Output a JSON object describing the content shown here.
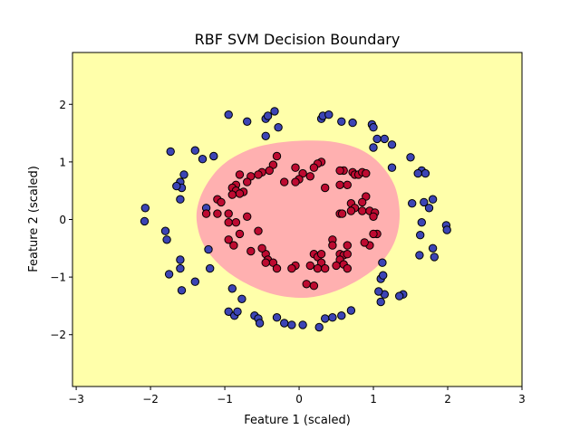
{
  "chart_data": {
    "type": "scatter",
    "title": "RBF SVM Decision Boundary",
    "xlabel": "Feature 1 (scaled)",
    "ylabel": "Feature 2 (scaled)",
    "xlim": [
      -3.05,
      3.0
    ],
    "ylim": [
      -2.9,
      2.9
    ],
    "xticks": [
      -3,
      -2,
      -1,
      0,
      1,
      2,
      3
    ],
    "yticks": [
      -2,
      -1,
      0,
      1,
      2
    ],
    "xtick_labels": [
      "−3",
      "−2",
      "−1",
      "0",
      "1",
      "2",
      "3"
    ],
    "ytick_labels": [
      "−2",
      "−1",
      "0",
      "1",
      "2"
    ],
    "grid": false,
    "legend": "none",
    "colors": {
      "background_region": "#ffffaa",
      "boundary_region": "#ffb0b0",
      "class_outer": "#3c44b5",
      "class_inner": "#bd0a30",
      "marker_edge": "#000000"
    },
    "decision_region": [
      [
        -1.38,
        0.0
      ],
      [
        -1.34,
        0.35
      ],
      [
        -1.2,
        0.7
      ],
      [
        -1.0,
        0.98
      ],
      [
        -0.7,
        1.2
      ],
      [
        -0.35,
        1.32
      ],
      [
        0.1,
        1.37
      ],
      [
        0.5,
        1.34
      ],
      [
        0.85,
        1.2
      ],
      [
        1.1,
        0.95
      ],
      [
        1.28,
        0.6
      ],
      [
        1.35,
        0.2
      ],
      [
        1.33,
        -0.2
      ],
      [
        1.22,
        -0.55
      ],
      [
        1.02,
        -0.85
      ],
      [
        0.7,
        -1.12
      ],
      [
        0.35,
        -1.3
      ],
      [
        0.0,
        -1.36
      ],
      [
        -0.4,
        -1.28
      ],
      [
        -0.8,
        -1.05
      ],
      [
        -1.1,
        -0.75
      ],
      [
        -1.3,
        -0.4
      ]
    ],
    "series": [
      {
        "values": [
          [
            -0.95,
            1.82
          ],
          [
            -0.7,
            1.7
          ],
          [
            -0.45,
            1.75
          ],
          [
            -0.42,
            1.8
          ],
          [
            -0.33,
            1.88
          ],
          [
            -0.28,
            1.6
          ],
          [
            -0.45,
            1.45
          ],
          [
            0.3,
            1.75
          ],
          [
            0.32,
            1.8
          ],
          [
            0.4,
            1.82
          ],
          [
            0.57,
            1.7
          ],
          [
            0.72,
            1.68
          ],
          [
            0.98,
            1.65
          ],
          [
            1.0,
            1.6
          ],
          [
            1.15,
            1.4
          ],
          [
            1.25,
            1.3
          ],
          [
            1.0,
            1.25
          ],
          [
            1.05,
            1.4
          ],
          [
            -1.15,
            1.1
          ],
          [
            -1.3,
            1.05
          ],
          [
            -1.4,
            1.2
          ],
          [
            -1.73,
            1.18
          ],
          [
            -1.55,
            0.78
          ],
          [
            -1.6,
            0.65
          ],
          [
            -1.58,
            0.55
          ],
          [
            -1.65,
            0.58
          ],
          [
            -1.6,
            0.35
          ],
          [
            -1.25,
            0.2
          ],
          [
            1.25,
            0.9
          ],
          [
            1.5,
            1.08
          ],
          [
            1.65,
            0.85
          ],
          [
            1.7,
            0.8
          ],
          [
            1.6,
            0.8
          ],
          [
            1.52,
            0.28
          ],
          [
            1.68,
            0.3
          ],
          [
            1.75,
            0.2
          ],
          [
            1.8,
            0.35
          ],
          [
            1.65,
            -0.05
          ],
          [
            1.63,
            -0.27
          ],
          [
            1.8,
            -0.5
          ],
          [
            1.82,
            -0.65
          ],
          [
            1.62,
            -0.62
          ],
          [
            1.98,
            -0.1
          ],
          [
            1.99,
            -0.18
          ],
          [
            -2.07,
            0.2
          ],
          [
            -2.08,
            -0.03
          ],
          [
            -1.8,
            -0.2
          ],
          [
            -1.78,
            -0.35
          ],
          [
            -1.6,
            -0.7
          ],
          [
            -1.6,
            -0.85
          ],
          [
            -1.75,
            -0.95
          ],
          [
            -1.4,
            -1.08
          ],
          [
            -1.22,
            -0.52
          ],
          [
            -1.2,
            -0.85
          ],
          [
            -1.58,
            -1.23
          ],
          [
            -0.9,
            -1.2
          ],
          [
            -0.77,
            -1.38
          ],
          [
            -0.95,
            -1.6
          ],
          [
            -0.87,
            -1.67
          ],
          [
            -0.83,
            -1.6
          ],
          [
            -0.6,
            -1.67
          ],
          [
            -0.55,
            -1.72
          ],
          [
            -0.53,
            -1.8
          ],
          [
            -0.3,
            -1.7
          ],
          [
            -0.2,
            -1.8
          ],
          [
            -0.1,
            -1.83
          ],
          [
            0.05,
            -1.83
          ],
          [
            0.27,
            -1.87
          ],
          [
            0.35,
            -1.72
          ],
          [
            0.45,
            -1.7
          ],
          [
            0.57,
            -1.67
          ],
          [
            0.7,
            -1.58
          ],
          [
            1.1,
            -1.43
          ],
          [
            1.15,
            -1.3
          ],
          [
            1.07,
            -1.25
          ],
          [
            1.1,
            -1.03
          ],
          [
            1.13,
            -0.97
          ],
          [
            1.4,
            -1.3
          ],
          [
            1.35,
            -1.33
          ],
          [
            1.12,
            -0.75
          ]
        ]
      },
      {
        "values": [
          [
            -0.3,
            1.1
          ],
          [
            -0.35,
            0.95
          ],
          [
            0.3,
            1.0
          ],
          [
            0.25,
            0.97
          ],
          [
            0.2,
            0.9
          ],
          [
            -0.05,
            0.9
          ],
          [
            -0.4,
            0.85
          ],
          [
            -0.5,
            0.82
          ],
          [
            -0.55,
            0.78
          ],
          [
            -0.8,
            0.78
          ],
          [
            -0.65,
            0.75
          ],
          [
            -0.7,
            0.65
          ],
          [
            -0.85,
            0.6
          ],
          [
            -0.9,
            0.55
          ],
          [
            -0.75,
            0.48
          ],
          [
            -0.85,
            0.5
          ],
          [
            -0.8,
            0.45
          ],
          [
            -0.9,
            0.43
          ],
          [
            0.05,
            0.8
          ],
          [
            0.15,
            0.75
          ],
          [
            0.0,
            0.7
          ],
          [
            -0.05,
            0.65
          ],
          [
            -0.2,
            0.65
          ],
          [
            0.35,
            0.55
          ],
          [
            0.6,
            0.85
          ],
          [
            0.72,
            0.82
          ],
          [
            0.75,
            0.78
          ],
          [
            0.8,
            0.78
          ],
          [
            0.85,
            0.82
          ],
          [
            0.9,
            0.8
          ],
          [
            0.55,
            0.6
          ],
          [
            0.65,
            0.6
          ],
          [
            0.9,
            0.4
          ],
          [
            0.85,
            0.3
          ],
          [
            0.7,
            0.28
          ],
          [
            0.75,
            0.2
          ],
          [
            0.85,
            0.15
          ],
          [
            0.95,
            0.15
          ],
          [
            1.02,
            0.12
          ],
          [
            1.0,
            0.05
          ],
          [
            0.55,
            0.1
          ],
          [
            0.7,
            0.15
          ],
          [
            -1.1,
            0.35
          ],
          [
            -1.05,
            0.3
          ],
          [
            -1.25,
            0.1
          ],
          [
            -1.1,
            0.1
          ],
          [
            -0.95,
            0.1
          ],
          [
            -0.95,
            -0.05
          ],
          [
            -0.85,
            -0.05
          ],
          [
            -0.7,
            0.05
          ],
          [
            -0.8,
            -0.25
          ],
          [
            -0.95,
            -0.35
          ],
          [
            -0.88,
            -0.45
          ],
          [
            -0.65,
            -0.55
          ],
          [
            -0.45,
            -0.6
          ],
          [
            -0.42,
            -0.7
          ],
          [
            -0.35,
            -0.75
          ],
          [
            -0.45,
            -0.75
          ],
          [
            -0.3,
            -0.85
          ],
          [
            -0.5,
            -0.5
          ],
          [
            -0.55,
            -0.2
          ],
          [
            -0.05,
            -0.8
          ],
          [
            -0.1,
            -0.85
          ],
          [
            0.2,
            -0.6
          ],
          [
            0.25,
            -0.65
          ],
          [
            0.3,
            -0.75
          ],
          [
            0.25,
            -0.85
          ],
          [
            0.15,
            -0.8
          ],
          [
            0.3,
            -0.6
          ],
          [
            0.55,
            -0.6
          ],
          [
            0.6,
            -0.62
          ],
          [
            0.65,
            -0.6
          ],
          [
            0.55,
            -0.7
          ],
          [
            0.6,
            -0.78
          ],
          [
            0.65,
            -0.85
          ],
          [
            0.5,
            -0.8
          ],
          [
            0.35,
            -0.85
          ],
          [
            0.1,
            -1.12
          ],
          [
            0.2,
            -1.15
          ],
          [
            1.05,
            -0.25
          ],
          [
            1.0,
            -0.25
          ],
          [
            0.95,
            -0.45
          ],
          [
            0.88,
            -0.4
          ],
          [
            0.65,
            -0.45
          ],
          [
            0.55,
            0.85
          ],
          [
            0.45,
            -0.35
          ],
          [
            0.45,
            -0.45
          ],
          [
            0.58,
            0.1
          ]
        ]
      }
    ]
  }
}
